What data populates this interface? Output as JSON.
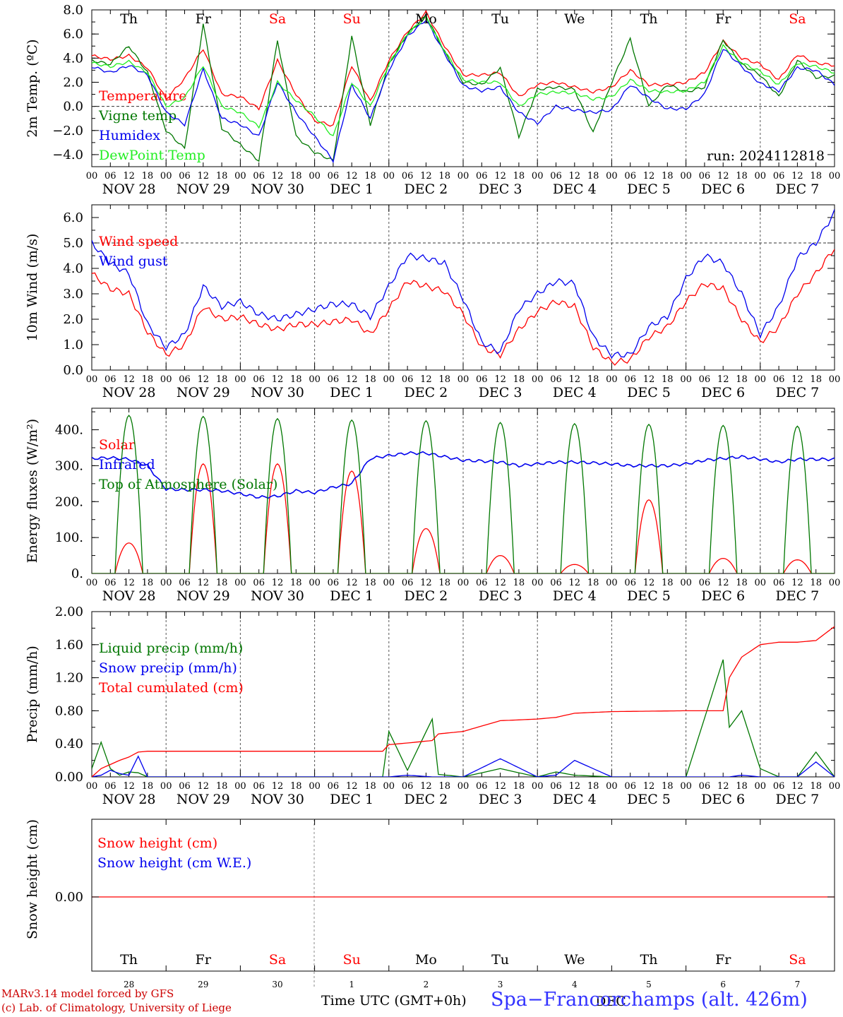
{
  "chart_data": [
    {
      "type": "line",
      "id": "temp",
      "ylabel": "2m Temp. (ºC)",
      "ylim": [
        -5,
        8
      ],
      "yticks": [
        -4,
        -2,
        0,
        2,
        4,
        6,
        8
      ],
      "ytick_labels": [
        "−4.0",
        "−2.0",
        "0.0",
        "2.0",
        "4.0",
        "6.0",
        "8.0"
      ],
      "ref_line": 0,
      "day_labels": [
        "Th",
        "Fr",
        "Sa",
        "Su",
        "Mo",
        "Tu",
        "We",
        "Th",
        "Fr",
        "Sa"
      ],
      "weekend_days": [
        "Sa",
        "Su"
      ],
      "run_label": "run: 2024112818",
      "x_hours": [
        0,
        6,
        12,
        18,
        24,
        30,
        36,
        42,
        48,
        54,
        60,
        66,
        72,
        78,
        84,
        90,
        96,
        102,
        108,
        114,
        120,
        126,
        132,
        138,
        144,
        150,
        156,
        162,
        168,
        174,
        180,
        186,
        192,
        198,
        204,
        210,
        216,
        222,
        228,
        234,
        240
      ],
      "series": [
        {
          "name": "Temperature",
          "color": "#ff0000",
          "values": [
            4.2,
            3.9,
            4.2,
            3.2,
            0.6,
            2.3,
            4.8,
            1.0,
            0.8,
            -0.2,
            3.8,
            1.0,
            -1.2,
            -1.6,
            3.4,
            0.4,
            3.8,
            6.2,
            7.8,
            5.0,
            2.6,
            2.6,
            2.8,
            0.8,
            1.8,
            2.0,
            1.6,
            1.2,
            1.6,
            3.0,
            1.8,
            1.8,
            2.0,
            2.8,
            5.4,
            4.0,
            3.5,
            2.2,
            4.3,
            3.6,
            3.4
          ]
        },
        {
          "name": "Vigne temp",
          "color": "#007700",
          "values": [
            3.8,
            3.5,
            5.0,
            2.8,
            -2.0,
            -3.5,
            6.8,
            -1.8,
            -3.2,
            -4.5,
            5.5,
            -2.5,
            -3.8,
            -4.5,
            5.8,
            -1.5,
            3.5,
            6.0,
            7.5,
            4.5,
            2.0,
            1.8,
            3.2,
            -2.5,
            1.4,
            1.6,
            1.4,
            -2.2,
            2.0,
            5.6,
            0.0,
            1.8,
            1.2,
            1.6,
            5.5,
            3.5,
            2.6,
            0.8,
            3.8,
            2.4,
            2.5
          ]
        },
        {
          "name": "Humidex",
          "color": "#0000ee",
          "values": [
            3.3,
            2.8,
            3.4,
            2.6,
            -0.5,
            -1.5,
            3.1,
            -1.0,
            -1.5,
            -2.5,
            2.0,
            -0.5,
            -2.5,
            -4.5,
            1.8,
            -1.0,
            3.0,
            5.8,
            7.2,
            4.4,
            1.7,
            1.3,
            1.6,
            -0.5,
            -1.4,
            0.0,
            -0.3,
            -0.5,
            -0.3,
            1.8,
            0.7,
            -0.2,
            -0.2,
            1.0,
            4.8,
            3.3,
            1.9,
            1.3,
            3.2,
            3.0,
            1.8
          ]
        },
        {
          "name": "DewPoint Temp",
          "color": "#22ee22",
          "values": [
            3.6,
            3.3,
            3.7,
            2.8,
            0.0,
            0.7,
            3.4,
            0.0,
            -0.5,
            -1.7,
            2.0,
            0.5,
            -0.8,
            -2.5,
            2.0,
            0.0,
            3.5,
            6.0,
            7.4,
            4.6,
            2.2,
            2.0,
            2.0,
            0.0,
            1.0,
            1.2,
            1.1,
            0.6,
            0.8,
            2.2,
            1.3,
            1.2,
            1.3,
            2.0,
            5.0,
            3.6,
            2.9,
            1.8,
            3.6,
            3.3,
            2.8
          ]
        }
      ]
    },
    {
      "type": "line",
      "id": "wind",
      "ylabel": "10m Wind (m/s)",
      "ylim": [
        0,
        6.5
      ],
      "yticks": [
        0,
        1,
        2,
        3,
        4,
        5,
        6
      ],
      "ytick_labels": [
        "0.0",
        "1.0",
        "2.0",
        "3.0",
        "4.0",
        "5.0",
        "6.0"
      ],
      "ref_line": 5,
      "x_hours": [
        0,
        6,
        12,
        18,
        24,
        30,
        36,
        42,
        48,
        54,
        60,
        66,
        72,
        78,
        84,
        90,
        96,
        102,
        108,
        114,
        120,
        126,
        132,
        138,
        144,
        150,
        156,
        162,
        168,
        174,
        180,
        186,
        192,
        198,
        204,
        210,
        216,
        222,
        228,
        234,
        240
      ],
      "series": [
        {
          "name": "Wind speed",
          "color": "#ff0000",
          "values": [
            3.8,
            3.2,
            3.0,
            1.5,
            0.6,
            1.0,
            2.5,
            2.0,
            2.1,
            1.8,
            1.6,
            1.8,
            1.8,
            1.9,
            2.0,
            1.4,
            2.4,
            3.5,
            3.3,
            3.1,
            2.2,
            0.9,
            0.6,
            1.6,
            2.3,
            2.7,
            2.5,
            0.9,
            0.3,
            0.4,
            1.3,
            1.7,
            2.7,
            3.4,
            3.2,
            2.0,
            1.1,
            1.7,
            3.0,
            3.8,
            4.8
          ]
        },
        {
          "name": "Wind gust",
          "color": "#0000ee",
          "values": [
            5.0,
            4.2,
            3.8,
            1.8,
            0.9,
            1.4,
            3.3,
            2.5,
            2.7,
            2.2,
            2.0,
            2.2,
            2.4,
            2.6,
            2.6,
            2.1,
            3.3,
            4.5,
            4.4,
            4.2,
            2.8,
            1.1,
            0.7,
            2.4,
            3.0,
            3.5,
            3.4,
            1.3,
            0.6,
            0.6,
            1.7,
            2.1,
            3.6,
            4.5,
            4.2,
            3.0,
            1.4,
            2.5,
            4.4,
            5.0,
            6.2
          ]
        }
      ]
    },
    {
      "type": "line",
      "id": "flux",
      "ylabel": "Energy fluxes (W/m²)",
      "ylim": [
        0,
        460
      ],
      "yticks": [
        0,
        100,
        200,
        300,
        400
      ],
      "ytick_labels": [
        "0.",
        "100.",
        "200.",
        "300.",
        "400."
      ],
      "x_hours": [
        0,
        6,
        12,
        18,
        24,
        30,
        36,
        42,
        48,
        54,
        60,
        66,
        72,
        78,
        84,
        90,
        96,
        102,
        108,
        114,
        120,
        126,
        132,
        138,
        144,
        150,
        156,
        162,
        168,
        174,
        180,
        186,
        192,
        198,
        204,
        210,
        216,
        222,
        228,
        234,
        240
      ],
      "series": [
        {
          "name": "Solar",
          "color": "#ff0000",
          "peaks": [
            85,
            305,
            305,
            285,
            125,
            50,
            25,
            205,
            42,
            38
          ]
        },
        {
          "name": "Infrared",
          "color": "#0000ee",
          "values": [
            320,
            322,
            318,
            300,
            235,
            233,
            233,
            230,
            222,
            212,
            215,
            230,
            225,
            240,
            250,
            320,
            328,
            335,
            335,
            325,
            315,
            313,
            310,
            300,
            305,
            310,
            310,
            308,
            305,
            300,
            300,
            300,
            305,
            315,
            320,
            325,
            318,
            310,
            318,
            318,
            318
          ]
        },
        {
          "name": "Top of Atmosphere (Solar)",
          "color": "#007700",
          "peaks": [
            440,
            437,
            431,
            427,
            425,
            420,
            417,
            415,
            412,
            410
          ]
        }
      ]
    },
    {
      "type": "line",
      "id": "precip",
      "ylabel": "Precip (mm/h)",
      "ylim": [
        0,
        2
      ],
      "yticks": [
        0,
        0.4,
        0.8,
        1.2,
        1.6,
        2.0
      ],
      "ytick_labels": [
        "0.00",
        "0.40",
        "0.80",
        "1.20",
        "1.60",
        "2.00"
      ],
      "x_hours": [
        0,
        3,
        6,
        9,
        12,
        15,
        18,
        24,
        48,
        72,
        94,
        96,
        102,
        110,
        112,
        120,
        132,
        144,
        150,
        156,
        168,
        192,
        204,
        206,
        210,
        216,
        222,
        228,
        234,
        240
      ],
      "series": [
        {
          "name": "Liquid precip (mm/h)",
          "color": "#007700",
          "values": [
            0.1,
            0.42,
            0.1,
            0.02,
            0.06,
            0.05,
            0.0,
            0.0,
            0.0,
            0.0,
            0.0,
            0.55,
            0.08,
            0.7,
            0.03,
            0.0,
            0.1,
            0.0,
            0.06,
            0.02,
            0.0,
            0.0,
            1.42,
            0.6,
            0.8,
            0.1,
            0.0,
            0.0,
            0.3,
            0.0
          ]
        },
        {
          "name": "Snow precip (mm/h)",
          "color": "#0000ee",
          "values": [
            0.0,
            0.02,
            0.08,
            0.04,
            0.02,
            0.25,
            0.0,
            0.0,
            0.0,
            0.0,
            0.0,
            0.0,
            0.02,
            0.0,
            0.0,
            0.0,
            0.22,
            0.0,
            0.02,
            0.2,
            0.0,
            0.0,
            0.0,
            0.0,
            0.02,
            0.0,
            0.0,
            0.0,
            0.18,
            0.0
          ]
        },
        {
          "name": "Total cumulated (cm)",
          "color": "#ff0000",
          "values": [
            0.0,
            0.1,
            0.15,
            0.2,
            0.24,
            0.3,
            0.31,
            0.31,
            0.31,
            0.31,
            0.31,
            0.39,
            0.41,
            0.44,
            0.52,
            0.55,
            0.68,
            0.7,
            0.72,
            0.77,
            0.79,
            0.8,
            0.8,
            1.2,
            1.45,
            1.6,
            1.63,
            1.63,
            1.65,
            1.82
          ]
        }
      ]
    },
    {
      "type": "line",
      "id": "snow",
      "ylabel": "Snow height (cm)",
      "ytick_labels": [
        "0.00"
      ],
      "day_labels": [
        "Th",
        "Fr",
        "Sa",
        "Su",
        "Mo",
        "Tu",
        "We",
        "Th",
        "Fr",
        "Sa"
      ],
      "day_numbers": [
        "28",
        "29",
        "30",
        "1",
        "2",
        "3",
        "4",
        "5",
        "6",
        "7"
      ],
      "month_label": "DEC",
      "series": [
        {
          "name": "Snow height (cm)",
          "color": "#ff0000",
          "values": [
            0,
            0
          ]
        },
        {
          "name": "Snow height (cm W.E.)",
          "color": "#0000ee",
          "values": [
            0,
            0
          ]
        }
      ]
    }
  ],
  "hour_ticks": [
    "00",
    "06",
    "12",
    "18"
  ],
  "date_labels": [
    "NOV 28",
    "NOV 29",
    "NOV 30",
    "DEC  1",
    "DEC  2",
    "DEC  3",
    "DEC  4",
    "DEC  5",
    "DEC  6",
    "DEC  7"
  ],
  "footer": {
    "model": "MARv3.14 model forced by GFS",
    "lab": "(c) Lab. of Climatology, University of Liege",
    "xlabel": "Time UTC (GMT+0h)",
    "station": "Spa−Francorchamps (alt. 426m)"
  }
}
